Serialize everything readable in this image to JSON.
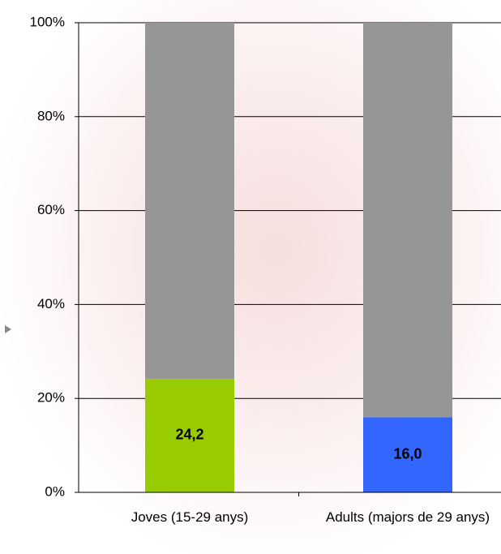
{
  "chart_data": {
    "type": "stacked_bar",
    "categories": [
      "Joves (15-29 anys)",
      "Adults (majors de 29 anys)"
    ],
    "series": [
      {
        "color": "#99cc00",
        "values": [
          24.2,
          16.0
        ],
        "value_labels": [
          "24,2",
          "16,0"
        ]
      },
      {
        "color": "#969696",
        "values": [
          75.8,
          84.0
        ]
      }
    ],
    "series_colors_by_category": [
      [
        "#99cc00",
        "#3366ff"
      ],
      [
        "#969696",
        "#969696"
      ]
    ],
    "ylim": [
      0,
      100
    ],
    "yticks": [
      {
        "value": 0,
        "label": "0%"
      },
      {
        "value": 20,
        "label": "20%"
      },
      {
        "value": 40,
        "label": "40%"
      },
      {
        "value": 60,
        "label": "60%"
      },
      {
        "value": 80,
        "label": "80%"
      },
      {
        "value": 100,
        "label": "100%"
      }
    ],
    "grid": true
  }
}
